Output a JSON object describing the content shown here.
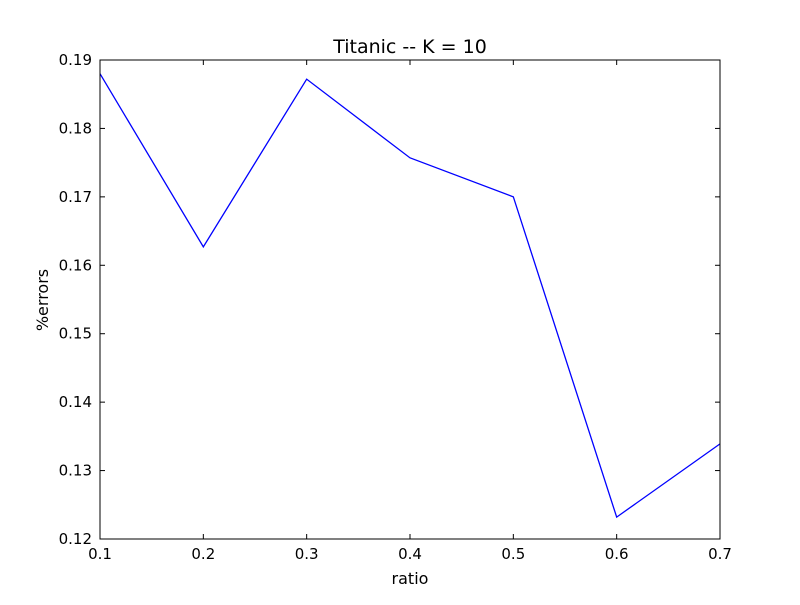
{
  "chart_data": {
    "type": "line",
    "title": "Titanic -- K = 10",
    "xlabel": "ratio",
    "ylabel": "%errors",
    "xlim": [
      0.1,
      0.7
    ],
    "ylim": [
      0.12,
      0.19
    ],
    "xticks": [
      "0.1",
      "0.2",
      "0.3",
      "0.4",
      "0.5",
      "0.6",
      "0.7"
    ],
    "yticks": [
      "0.12",
      "0.13",
      "0.14",
      "0.15",
      "0.16",
      "0.17",
      "0.18",
      "0.19"
    ],
    "grid": false,
    "series": [
      {
        "color": "#0000ff",
        "x": [
          0.1,
          0.2,
          0.3,
          0.4,
          0.5,
          0.6,
          0.7
        ],
        "y": [
          0.188,
          0.1627,
          0.1872,
          0.1757,
          0.17,
          0.1232,
          0.1339
        ]
      }
    ]
  }
}
